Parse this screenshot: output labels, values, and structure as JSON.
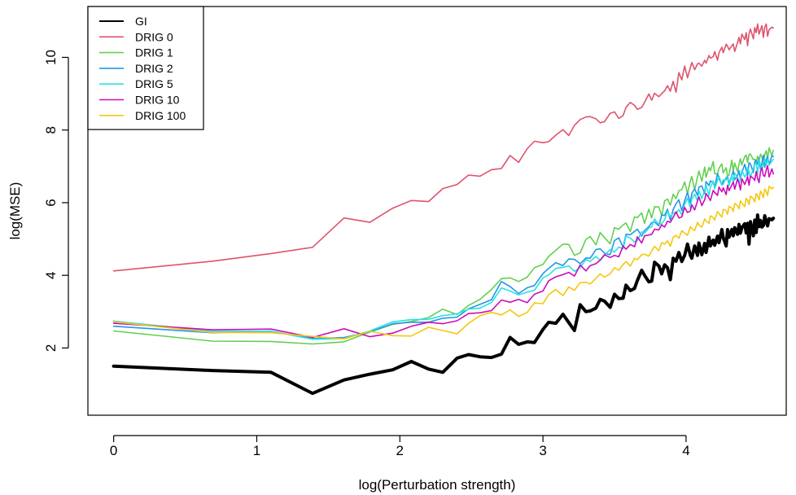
{
  "chart_data": {
    "type": "line",
    "title": "",
    "xlabel": "log(Perturbation strength)",
    "ylabel": "log(MSE)",
    "xlim": [
      -0.18,
      4.7
    ],
    "ylim": [
      0.15,
      11.4
    ],
    "xticks": [
      0,
      1,
      2,
      3,
      4
    ],
    "yticks": [
      2,
      4,
      6,
      8,
      10
    ],
    "grid": false,
    "legend": "top-left",
    "x": [
      0,
      0.69,
      1.1,
      1.39,
      1.61,
      1.79,
      1.95,
      2.08,
      2.2,
      2.3,
      2.4,
      2.48,
      2.56,
      2.64,
      2.71,
      2.77,
      2.83,
      2.89,
      2.94,
      3,
      3.04,
      3.09,
      3.14,
      3.18,
      3.22,
      3.26,
      3.3,
      3.33,
      3.37,
      3.4,
      3.43,
      3.47,
      3.5,
      3.53,
      3.56,
      3.58,
      3.61,
      3.64,
      3.66,
      3.69,
      3.71,
      3.74,
      3.76,
      3.78,
      3.81,
      3.83,
      3.85,
      3.87,
      3.89,
      3.91,
      3.93,
      3.95,
      3.97,
      3.99,
      4.01,
      4.03,
      4.04,
      4.06,
      4.08,
      4.09,
      4.11,
      4.13,
      4.14,
      4.16,
      4.17,
      4.19,
      4.2,
      4.22,
      4.23,
      4.25,
      4.26,
      4.28,
      4.29,
      4.3,
      4.32,
      4.33,
      4.34,
      4.36,
      4.37,
      4.38,
      4.39,
      4.41,
      4.42,
      4.43,
      4.44,
      4.45,
      4.47,
      4.48,
      4.49,
      4.5,
      4.51,
      4.52,
      4.53,
      4.54,
      4.55,
      4.56,
      4.57,
      4.58,
      4.6,
      4.61
    ],
    "series": [
      {
        "name": "GI",
        "color": "#000000",
        "width": 4,
        "values": [
          1.5,
          1.38,
          1.33,
          0.75,
          1.12,
          1.28,
          1.4,
          1.63,
          1.42,
          1.33,
          1.72,
          1.82,
          1.76,
          1.74,
          1.83,
          2.29,
          2.1,
          2.17,
          2.15,
          2.51,
          2.71,
          2.68,
          2.93,
          2.7,
          2.48,
          3.19,
          3,
          3.02,
          3.1,
          3.34,
          3.29,
          3.12,
          3.48,
          3.36,
          3.37,
          3.73,
          3.58,
          3.64,
          3.86,
          4.14,
          4,
          3.82,
          3.84,
          4.36,
          4.26,
          4.04,
          4.29,
          4.21,
          3.88,
          4.47,
          4.39,
          4.63,
          4.38,
          4.55,
          4.86,
          4.55,
          4.47,
          4.81,
          4.55,
          4.89,
          4.57,
          4.88,
          4.63,
          5.05,
          4.81,
          4.97,
          4.83,
          5.08,
          4.9,
          5.26,
          5.04,
          4.81,
          5.26,
          5.05,
          5.26,
          5.09,
          5.31,
          5.13,
          5.4,
          5.16,
          5.31,
          5.42,
          5.17,
          5.43,
          4.86,
          5.48,
          5.09,
          5.52,
          5.18,
          5.66,
          5.34,
          5.51,
          5.33,
          5.37,
          5.64,
          5.47,
          5.36,
          5.56,
          5.53,
          5.57
        ]
      },
      {
        "name": "DRIG 0",
        "color": "#df536b",
        "width": 1.6,
        "values": [
          4.12,
          4.39,
          4.6,
          4.77,
          5.58,
          5.46,
          5.85,
          6.06,
          6.03,
          6.39,
          6.5,
          6.76,
          6.73,
          6.91,
          6.94,
          7.3,
          7.11,
          7.49,
          7.69,
          7.65,
          7.68,
          7.86,
          8.01,
          7.85,
          8.13,
          8.29,
          8.36,
          8.37,
          8.31,
          8.2,
          8.23,
          8.46,
          8.5,
          8.32,
          8.4,
          8.62,
          8.76,
          8.68,
          8.57,
          8.62,
          8.76,
          8.99,
          8.82,
          9.01,
          8.92,
          9,
          9.08,
          9.22,
          9.07,
          9.34,
          9.04,
          9.58,
          9.38,
          9.76,
          9.44,
          9.72,
          9.86,
          9.66,
          9.82,
          9.84,
          9.76,
          9.92,
          9.84,
          10.05,
          9.98,
          10.02,
          10.16,
          9.92,
          10.13,
          10.28,
          10.13,
          10.36,
          10.31,
          10.21,
          10.32,
          10.37,
          10.16,
          10.41,
          10.55,
          10.37,
          10.64,
          10.49,
          10.68,
          10.32,
          10.65,
          10.78,
          10.51,
          10.82,
          10.68,
          10.92,
          10.64,
          10.76,
          10.87,
          10.55,
          10.83,
          10.92,
          10.58,
          10.76,
          10.83,
          10.81
        ]
      },
      {
        "name": "DRIG 1",
        "color": "#61d04f",
        "width": 1.6,
        "values": [
          2.47,
          2.19,
          2.18,
          2.11,
          2.17,
          2.44,
          2.65,
          2.73,
          2.84,
          3.07,
          2.92,
          3.17,
          3.34,
          3.61,
          3.91,
          3.93,
          3.83,
          3.95,
          4.21,
          4.3,
          4.52,
          4.69,
          4.86,
          4.85,
          4.55,
          4.62,
          4.99,
          5.07,
          4.84,
          5.18,
          5.04,
          4.87,
          5.31,
          5.27,
          5.39,
          5.44,
          5.21,
          5.61,
          5.59,
          5.72,
          5.43,
          5.82,
          5.58,
          5.89,
          5.88,
          5.64,
          6.05,
          6.1,
          5.93,
          6.23,
          6.11,
          6.33,
          6.36,
          6.57,
          6.25,
          6.6,
          6.72,
          6.35,
          6.71,
          6.87,
          6.59,
          6.98,
          6.7,
          6.97,
          6.88,
          7.13,
          6.8,
          6.79,
          6.95,
          7.07,
          6.82,
          6.96,
          6.73,
          6.76,
          7.17,
          6.87,
          7.09,
          6.86,
          7.06,
          7.21,
          7.04,
          7.27,
          7.31,
          7.11,
          7.33,
          7.34,
          7.18,
          7.2,
          7.07,
          7.28,
          7.18,
          7.34,
          7.24,
          7.11,
          7.33,
          7.43,
          7.2,
          7.51,
          7.3,
          7.44
        ]
      },
      {
        "name": "DRIG 2",
        "color": "#2297e6",
        "width": 1.6,
        "values": [
          2.6,
          2.42,
          2.46,
          2.26,
          2.29,
          2.44,
          2.67,
          2.71,
          2.71,
          2.82,
          2.85,
          3.08,
          3.2,
          3.33,
          3.83,
          3.69,
          3.5,
          3.66,
          3.72,
          4.05,
          4.19,
          4.35,
          4.27,
          4.45,
          4.44,
          4.32,
          4.48,
          4.47,
          4.71,
          4.73,
          4.61,
          4.57,
          4.96,
          5.03,
          4.77,
          5.13,
          5.12,
          5.21,
          5.27,
          5.08,
          5.23,
          5.34,
          5.45,
          5.47,
          5.36,
          5.66,
          5.65,
          5.82,
          5.52,
          5.81,
          5.97,
          6.08,
          5.78,
          6.06,
          6.28,
          5.99,
          6.26,
          6.38,
          6.2,
          6.43,
          6.46,
          6.25,
          6.58,
          6.47,
          6.6,
          6.55,
          6.43,
          6.8,
          6.66,
          6.49,
          6.61,
          6.64,
          6.71,
          6.53,
          6.75,
          6.88,
          6.63,
          6.75,
          6.88,
          6.65,
          6.83,
          7.06,
          6.89,
          6.75,
          7.1,
          7.07,
          6.83,
          7.12,
          7.17,
          7.06,
          7.21,
          6.93,
          7.08,
          7.31,
          6.97,
          7.18,
          7.26,
          7.04,
          7.3,
          7.27
        ]
      },
      {
        "name": "DRIG 5",
        "color": "#28e2e5",
        "width": 1.6,
        "values": [
          2.74,
          2.46,
          2.46,
          2.24,
          2.26,
          2.47,
          2.72,
          2.78,
          2.79,
          2.89,
          2.94,
          3.07,
          3.1,
          3.25,
          3.65,
          3.57,
          3.46,
          3.54,
          3.59,
          3.93,
          4.01,
          4.19,
          4.22,
          4.26,
          4.11,
          4.21,
          4.44,
          4.38,
          4.52,
          4.41,
          4.55,
          4.71,
          4.64,
          4.78,
          4.73,
          5.08,
          5.03,
          4.92,
          4.96,
          5.2,
          5.16,
          5.3,
          5.34,
          5.55,
          5.4,
          5.42,
          5.53,
          5.77,
          5.61,
          5.72,
          5.7,
          5.81,
          5.66,
          5.95,
          6.13,
          5.85,
          6.11,
          6.24,
          6.04,
          6.33,
          6.11,
          6.35,
          6.48,
          6.19,
          6.42,
          6.6,
          6.38,
          6.62,
          6.73,
          6.48,
          6.51,
          6.71,
          6.66,
          6.47,
          6.75,
          6.55,
          6.82,
          6.7,
          6.53,
          6.66,
          6.89,
          6.71,
          6.76,
          6.97,
          6.85,
          6.69,
          6.95,
          7.05,
          7.09,
          6.79,
          7.17,
          7.04,
          6.89,
          7.1,
          7.21,
          7.03,
          7.19,
          7.04,
          7.14,
          7.2
        ]
      },
      {
        "name": "DRIG 10",
        "color": "#cd0bbc",
        "width": 1.6,
        "values": [
          2.68,
          2.5,
          2.52,
          2.29,
          2.53,
          2.31,
          2.41,
          2.6,
          2.71,
          2.67,
          2.75,
          2.95,
          2.97,
          3.03,
          3.32,
          3.26,
          3.34,
          3.25,
          3.48,
          3.57,
          3.85,
          3.96,
          4.02,
          4.08,
          3.98,
          4.29,
          4.12,
          4.27,
          4.32,
          4.42,
          4.57,
          4.49,
          4.55,
          4.51,
          4.81,
          4.72,
          4.85,
          4.79,
          5.06,
          4.89,
          5.09,
          5.11,
          5.13,
          5.27,
          5.25,
          5.39,
          5.33,
          5.49,
          5.46,
          5.6,
          5.75,
          5.58,
          5.61,
          5.87,
          5.73,
          5.77,
          5.94,
          5.8,
          6.05,
          6.16,
          5.92,
          6.08,
          6.25,
          6.13,
          6.06,
          6.34,
          6.28,
          6.2,
          6.43,
          6.3,
          6.41,
          6.22,
          6.48,
          6.33,
          6.49,
          6.57,
          6.37,
          6.66,
          6.53,
          6.35,
          6.66,
          6.5,
          6.6,
          6.72,
          6.48,
          6.73,
          6.67,
          6.61,
          6.86,
          6.67,
          6.55,
          6.86,
          6.96,
          6.75,
          6.72,
          6.9,
          7.02,
          6.71,
          6.93,
          6.79
        ]
      },
      {
        "name": "DRIG 100",
        "color": "#f5c710",
        "width": 1.6,
        "values": [
          2.72,
          2.43,
          2.42,
          2.32,
          2.25,
          2.46,
          2.34,
          2.33,
          2.57,
          2.48,
          2.39,
          2.68,
          2.89,
          2.98,
          2.91,
          3.05,
          2.87,
          2.98,
          3.24,
          3.22,
          3.47,
          3.61,
          3.44,
          3.68,
          3.59,
          3.8,
          3.81,
          3.76,
          3.92,
          4.04,
          3.95,
          4.04,
          4.21,
          4.14,
          4.3,
          4.38,
          4.25,
          4.47,
          4.43,
          4.57,
          4.58,
          4.53,
          4.67,
          4.8,
          4.68,
          4.9,
          4.86,
          4.95,
          4.8,
          5.05,
          5.1,
          5.02,
          5.23,
          5.16,
          5.1,
          5.34,
          5.29,
          5.23,
          5.46,
          5.38,
          5.33,
          5.55,
          5.5,
          5.43,
          5.64,
          5.59,
          5.52,
          5.76,
          5.7,
          5.6,
          5.82,
          5.78,
          5.68,
          5.9,
          5.85,
          5.76,
          5.98,
          5.92,
          5.83,
          6.05,
          5.99,
          5.89,
          6.12,
          6.06,
          5.95,
          6.18,
          6.11,
          6.02,
          6.25,
          6.18,
          6.08,
          6.32,
          6.25,
          6.14,
          6.38,
          6.31,
          6.2,
          6.45,
          6.38,
          6.42
        ]
      }
    ]
  }
}
